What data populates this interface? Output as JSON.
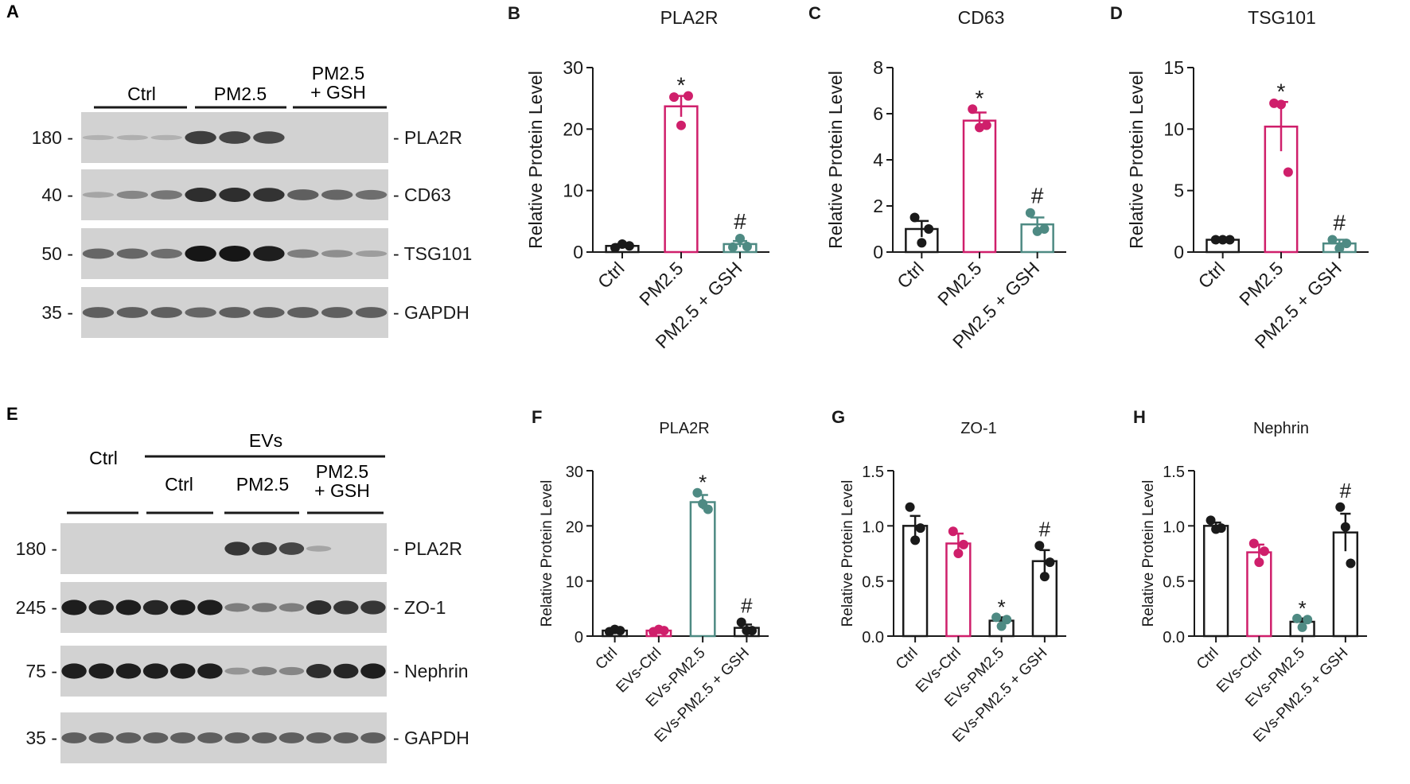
{
  "colors": {
    "ink": "#1a1a1a",
    "ctrl": "#1a1a1a",
    "pm25": "#cf1f6b",
    "gsh": "#4e8a83",
    "blot_bg": "#d2d2d2",
    "band": "#161616"
  },
  "blots": [
    {
      "panel": "A",
      "groups": [
        "Ctrl",
        "PM2.5",
        "PM2.5\n+ GSH"
      ],
      "rows": [
        {
          "mw": "180",
          "protein": "PLA2R",
          "intensity": [
            0.02,
            0.04,
            0.03,
            0.75,
            0.7,
            0.68,
            0.0,
            0.0,
            0.0
          ]
        },
        {
          "mw": "40",
          "protein": "CD63",
          "intensity": [
            0.1,
            0.3,
            0.4,
            0.85,
            0.85,
            0.82,
            0.55,
            0.5,
            0.45
          ]
        },
        {
          "mw": "50",
          "protein": "TSG101",
          "intensity": [
            0.5,
            0.5,
            0.45,
            1.0,
            1.0,
            0.95,
            0.35,
            0.25,
            0.15
          ]
        },
        {
          "mw": "35",
          "protein": "GAPDH",
          "intensity": [
            0.55,
            0.55,
            0.55,
            0.5,
            0.55,
            0.55,
            0.55,
            0.55,
            0.55
          ]
        }
      ]
    },
    {
      "panel": "E",
      "top_groups": [
        "Ctrl",
        "EVs"
      ],
      "groups": [
        "Ctrl",
        "PM2.5",
        "PM2.5\n+ GSH"
      ],
      "rows": [
        {
          "mw": "180",
          "protein": "PLA2R",
          "intensity": [
            0,
            0,
            0,
            0,
            0,
            0,
            0.8,
            0.75,
            0.7,
            0.1,
            0,
            0
          ]
        },
        {
          "mw": "245",
          "protein": "ZO-1",
          "intensity": [
            0.95,
            0.9,
            0.95,
            0.9,
            0.95,
            0.95,
            0.35,
            0.4,
            0.35,
            0.85,
            0.8,
            0.8
          ]
        },
        {
          "mw": "75",
          "protein": "Nephrin",
          "intensity": [
            0.95,
            0.95,
            0.95,
            0.95,
            0.95,
            0.95,
            0.2,
            0.35,
            0.3,
            0.85,
            0.9,
            0.95
          ]
        },
        {
          "mw": "35",
          "protein": "GAPDH",
          "intensity": [
            0.55,
            0.55,
            0.55,
            0.55,
            0.55,
            0.55,
            0.55,
            0.55,
            0.55,
            0.55,
            0.55,
            0.55
          ]
        }
      ]
    }
  ],
  "chart_data": [
    {
      "panel": "B",
      "type": "bar",
      "title": "PLA2R",
      "ylabel": "Relative Protein Level",
      "categories": [
        "Ctrl",
        "PM2.5",
        "PM2.5 + GSH"
      ],
      "colors": [
        "ctrl",
        "pm25",
        "gsh"
      ],
      "values": [
        1.0,
        23.7,
        1.3
      ],
      "sem": [
        0.3,
        1.7,
        0.5
      ],
      "points": [
        [
          0.7,
          1.3,
          1.0
        ],
        [
          25.2,
          20.6,
          25.4
        ],
        [
          0.8,
          2.2,
          0.9
        ]
      ],
      "annotations": [
        "",
        "*",
        "#"
      ],
      "ylim": [
        0,
        30
      ],
      "yticks": [
        "0",
        "10",
        "20",
        "30"
      ]
    },
    {
      "panel": "C",
      "type": "bar",
      "title": "CD63",
      "ylabel": "Relative Protein Level",
      "categories": [
        "Ctrl",
        "PM2.5",
        "PM2.5 + GSH"
      ],
      "colors": [
        "ctrl",
        "pm25",
        "gsh"
      ],
      "values": [
        1.0,
        5.7,
        1.2
      ],
      "sem": [
        0.35,
        0.35,
        0.3
      ],
      "points": [
        [
          1.5,
          0.4,
          1.0
        ],
        [
          6.2,
          5.4,
          5.5
        ],
        [
          1.7,
          0.9,
          1.0
        ]
      ],
      "annotations": [
        "",
        "*",
        "#"
      ],
      "ylim": [
        0,
        8
      ],
      "yticks": [
        "0",
        "2",
        "4",
        "6",
        "8"
      ]
    },
    {
      "panel": "D",
      "type": "bar",
      "title": "TSG101",
      "ylabel": "Relative Protein Level",
      "categories": [
        "Ctrl",
        "PM2.5",
        "PM2.5 + GSH"
      ],
      "colors": [
        "ctrl",
        "pm25",
        "gsh"
      ],
      "values": [
        1.0,
        10.2,
        0.7
      ],
      "sem": [
        0.05,
        2.0,
        0.3
      ],
      "points": [
        [
          1.0,
          1.0,
          1.0
        ],
        [
          12.1,
          12.0,
          6.5
        ],
        [
          1.0,
          0.3,
          0.7
        ]
      ],
      "annotations": [
        "",
        "*",
        "#"
      ],
      "ylim": [
        0,
        15
      ],
      "yticks": [
        "0",
        "5",
        "10",
        "15"
      ]
    },
    {
      "panel": "F",
      "type": "bar",
      "title": "PLA2R",
      "ylabel": "Relative Protein Level",
      "categories": [
        "Ctrl",
        "EVs-Ctrl",
        "EVs-PM2.5",
        "EVs-PM2.5 + GSH"
      ],
      "colors": [
        "ctrl",
        "pm25",
        "gsh",
        "ctrl"
      ],
      "values": [
        1.0,
        1.0,
        24.3,
        1.5
      ],
      "sem": [
        0.2,
        0.2,
        1.3,
        0.6
      ],
      "points": [
        [
          0.8,
          1.2,
          1.0
        ],
        [
          0.8,
          1.2,
          1.0
        ],
        [
          26.0,
          24.0,
          23.0
        ],
        [
          2.5,
          1.0,
          1.0
        ]
      ],
      "annotations": [
        "",
        "",
        "*",
        "#"
      ],
      "ylim": [
        0,
        30
      ],
      "yticks": [
        "0",
        "10",
        "20",
        "30"
      ]
    },
    {
      "panel": "G",
      "type": "bar",
      "title": "ZO-1",
      "ylabel": "Relative Protein Level",
      "categories": [
        "Ctrl",
        "EVs-Ctrl",
        "EVs-PM2.5",
        "EVs-PM2.5 + GSH"
      ],
      "colors": [
        "ctrl",
        "pm25",
        "ctrl",
        "ctrl"
      ],
      "point_colors": [
        "ctrl",
        "pm25",
        "gsh",
        "ctrl"
      ],
      "values": [
        1.0,
        0.84,
        0.14,
        0.68
      ],
      "sem": [
        0.09,
        0.09,
        0.03,
        0.1
      ],
      "points": [
        [
          1.17,
          0.87,
          0.98
        ],
        [
          0.95,
          0.75,
          0.83
        ],
        [
          0.17,
          0.09,
          0.15
        ],
        [
          0.82,
          0.54,
          0.67
        ]
      ],
      "annotations": [
        "",
        "",
        "*",
        "#"
      ],
      "ylim": [
        0,
        1.5
      ],
      "yticks": [
        "0.0",
        "0.5",
        "1.0",
        "1.5"
      ]
    },
    {
      "panel": "H",
      "type": "bar",
      "title": "Nephrin",
      "ylabel": "Relative Protein Level",
      "categories": [
        "Ctrl",
        "EVs-Ctrl",
        "EVs-PM2.5",
        "EVs-PM2.5 + GSH"
      ],
      "colors": [
        "ctrl",
        "pm25",
        "ctrl",
        "ctrl"
      ],
      "point_colors": [
        "ctrl",
        "pm25",
        "gsh",
        "ctrl"
      ],
      "values": [
        1.0,
        0.76,
        0.13,
        0.94
      ],
      "sem": [
        0.03,
        0.07,
        0.03,
        0.17
      ],
      "points": [
        [
          1.05,
          0.97,
          0.98
        ],
        [
          0.84,
          0.67,
          0.77
        ],
        [
          0.16,
          0.08,
          0.15
        ],
        [
          1.17,
          0.99,
          0.66
        ]
      ],
      "annotations": [
        "",
        "",
        "*",
        "#"
      ],
      "ylim": [
        0,
        1.5
      ],
      "yticks": [
        "0.0",
        "0.5",
        "1.0",
        "1.5"
      ]
    }
  ]
}
